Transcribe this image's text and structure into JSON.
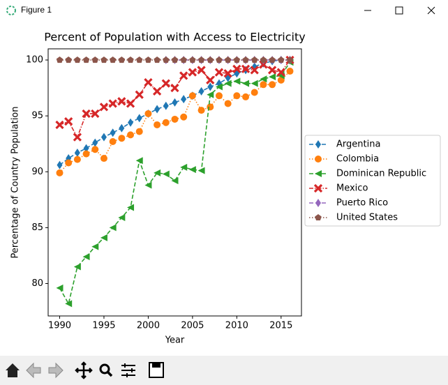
{
  "window_title": "Figure 1",
  "chart_data": {
    "type": "line",
    "title": "Percent of Population with Access to Electricity",
    "xlabel": "Year",
    "ylabel": "Percentage of Country Population",
    "x": [
      1990,
      1991,
      1992,
      1993,
      1994,
      1995,
      1996,
      1997,
      1998,
      1999,
      2000,
      2001,
      2002,
      2003,
      2004,
      2005,
      2006,
      2007,
      2008,
      2009,
      2010,
      2011,
      2012,
      2013,
      2014,
      2015,
      2016
    ],
    "xlim": [
      1988.7,
      2017.3
    ],
    "xticks": [
      1990,
      1995,
      2000,
      2005,
      2010,
      2015
    ],
    "ylim": [
      77.1,
      101.0
    ],
    "yticks": [
      80,
      85,
      90,
      95,
      100
    ],
    "legend": "right",
    "series": [
      {
        "name": "Argentina",
        "color": "#1f77b4",
        "linestyle": "dashed",
        "marker": "diamond",
        "values": [
          90.6,
          91.2,
          91.7,
          92.1,
          92.6,
          93.1,
          93.5,
          93.9,
          94.4,
          94.8,
          95.2,
          95.6,
          95.9,
          96.2,
          96.5,
          96.8,
          97.2,
          97.6,
          97.9,
          98.4,
          98.8,
          99.1,
          99.4,
          99.7,
          99.9,
          100,
          100
        ]
      },
      {
        "name": "Colombia",
        "color": "#ff7f0e",
        "linestyle": "dotted",
        "marker": "circle",
        "values": [
          89.9,
          90.8,
          91.1,
          91.6,
          92.0,
          91.2,
          92.7,
          93.0,
          93.3,
          93.6,
          95.2,
          94.2,
          94.4,
          94.7,
          94.9,
          96.8,
          95.5,
          95.8,
          96.8,
          96.1,
          96.8,
          96.7,
          97.1,
          97.8,
          97.8,
          98.2,
          99.0
        ]
      },
      {
        "name": "Dominican Republic",
        "color": "#2ca02c",
        "linestyle": "dashed",
        "marker": "triangle-left",
        "values": [
          79.6,
          78.2,
          81.5,
          82.4,
          83.3,
          84.1,
          85.0,
          85.9,
          86.8,
          91.0,
          88.8,
          89.9,
          89.8,
          89.2,
          90.4,
          90.2,
          90.1,
          96.9,
          97.6,
          97.9,
          98.1,
          97.9,
          97.9,
          98.3,
          98.5,
          98.6,
          99.8
        ]
      },
      {
        "name": "Mexico",
        "color": "#d62728",
        "linestyle": "dashdot",
        "marker": "x",
        "values": [
          94.2,
          94.5,
          93.1,
          95.2,
          95.2,
          95.8,
          96.1,
          96.3,
          96.1,
          96.9,
          98.0,
          97.2,
          97.9,
          97.5,
          98.6,
          98.9,
          99.1,
          98.2,
          98.9,
          98.8,
          99.2,
          99.2,
          99.1,
          99.6,
          99.1,
          98.9,
          100
        ]
      },
      {
        "name": "Puerto Rico",
        "color": "#9467bd",
        "linestyle": "dashed",
        "marker": "diamond",
        "values": [
          null,
          null,
          null,
          null,
          null,
          null,
          null,
          null,
          null,
          null,
          null,
          null,
          100,
          100,
          100,
          100,
          100,
          100,
          100,
          100,
          100,
          100,
          100,
          100,
          100,
          100,
          100
        ]
      },
      {
        "name": "United States",
        "color": "#8c564b",
        "linestyle": "dotted",
        "marker": "pentagon",
        "values": [
          100,
          100,
          100,
          100,
          100,
          100,
          100,
          100,
          100,
          100,
          100,
          100,
          100,
          100,
          100,
          100,
          100,
          100,
          100,
          100,
          100,
          100,
          100,
          100,
          100,
          100,
          100
        ]
      }
    ]
  }
}
